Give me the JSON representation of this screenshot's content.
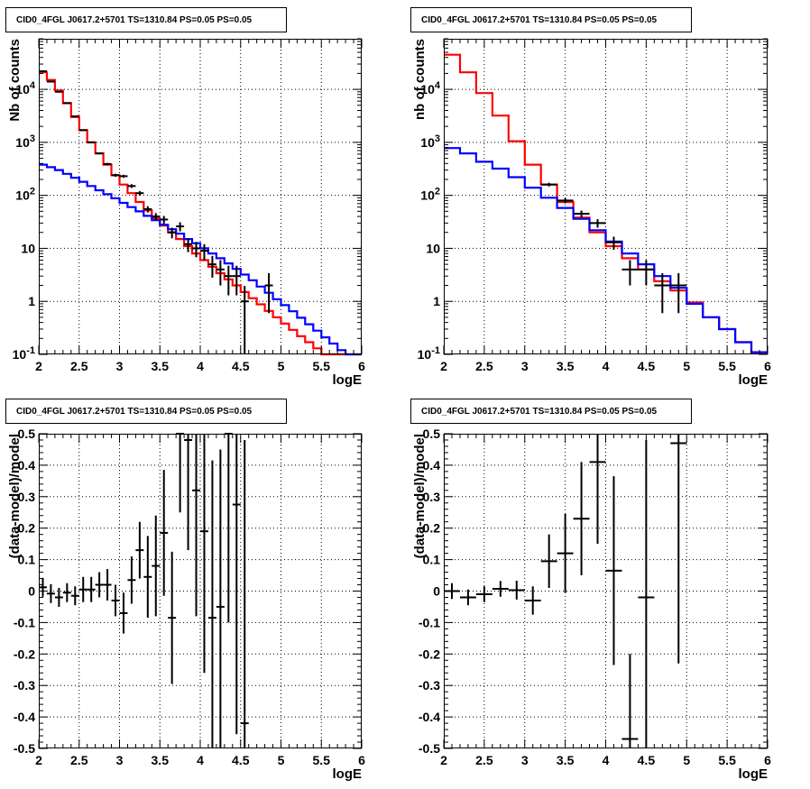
{
  "chart_data": [
    {
      "type": "line",
      "panel": "top-left",
      "title": "CID0_4FGL J0617.2+5701 TS=1310.84 PS=0.05 PS=0.05",
      "xlabel": "logE",
      "ylabel": "Nb of counts",
      "xlim": [
        2,
        6
      ],
      "ylim": [
        0.1,
        90000
      ],
      "yscale": "log",
      "grid": true,
      "x_ticks": [
        "2",
        "2.5",
        "3",
        "3.5",
        "4",
        "4.5",
        "5",
        "5.5",
        "6"
      ],
      "y_ticks": [
        "10^-1",
        "1",
        "10",
        "10^2",
        "10^3",
        "10^4"
      ],
      "series": [
        {
          "color": "#ff0000",
          "kind": "histogram",
          "bin_edges": [
            2.0,
            2.1,
            2.2,
            2.3,
            2.4,
            2.5,
            2.6,
            2.7,
            2.8,
            2.9,
            3.0,
            3.1,
            3.2,
            3.3,
            3.4,
            3.5,
            3.6,
            3.7,
            3.8,
            3.9,
            4.0,
            4.1,
            4.2,
            4.3,
            4.4,
            4.5,
            4.6,
            4.7,
            4.8,
            4.9,
            5.0,
            5.1,
            5.2,
            5.3,
            5.4,
            5.5,
            5.6,
            5.7,
            5.8,
            5.9,
            6.0
          ],
          "values": [
            21000,
            15000,
            9500,
            5500,
            3000,
            1700,
            1000,
            620,
            380,
            240,
            160,
            110,
            75,
            52,
            37,
            27,
            20,
            15,
            11,
            8,
            6,
            4.5,
            3.4,
            2.6,
            2,
            1.5,
            1.15,
            0.88,
            0.66,
            0.5,
            0.38,
            0.29,
            0.22,
            0.17,
            0.13,
            0.1,
            0.1,
            0.1,
            0.1,
            0.1
          ]
        },
        {
          "color": "#0000ff",
          "kind": "histogram",
          "bin_edges": [
            2.0,
            2.1,
            2.2,
            2.3,
            2.4,
            2.5,
            2.6,
            2.7,
            2.8,
            2.9,
            3.0,
            3.1,
            3.2,
            3.3,
            3.4,
            3.5,
            3.6,
            3.7,
            3.8,
            3.9,
            4.0,
            4.1,
            4.2,
            4.3,
            4.4,
            4.5,
            4.6,
            4.7,
            4.8,
            4.9,
            5.0,
            5.1,
            5.2,
            5.3,
            5.4,
            5.5,
            5.6,
            5.7,
            5.8,
            5.9,
            6.0
          ],
          "values": [
            380,
            340,
            300,
            255,
            215,
            180,
            150,
            125,
            105,
            88,
            72,
            60,
            50,
            41,
            34,
            28,
            23,
            19,
            15,
            12.5,
            10,
            8,
            6.5,
            5.2,
            4.1,
            3.2,
            2.5,
            1.9,
            1.45,
            1.1,
            0.85,
            0.65,
            0.49,
            0.37,
            0.28,
            0.21,
            0.16,
            0.12,
            0.1,
            0.1
          ]
        },
        {
          "color": "#000000",
          "kind": "points",
          "x": [
            2.05,
            2.15,
            2.25,
            2.35,
            2.45,
            2.55,
            2.65,
            2.75,
            2.85,
            2.95,
            3.05,
            3.15,
            3.25,
            3.35,
            3.45,
            3.55,
            3.65,
            3.75,
            3.85,
            3.95,
            4.05,
            4.15,
            4.25,
            4.35,
            4.45,
            4.55,
            4.85
          ],
          "y": [
            22000,
            14000,
            9000,
            5500,
            3100,
            1700,
            1000,
            620,
            390,
            240,
            230,
            150,
            110,
            55,
            40,
            35,
            20,
            26,
            12,
            10,
            9,
            5,
            4,
            3,
            3,
            1,
            2
          ],
          "xerr": 0.05,
          "yerr": [
            148,
            118,
            95,
            74,
            56,
            41,
            32,
            25,
            20,
            15.5,
            15,
            12,
            10.5,
            7.4,
            6.3,
            5.9,
            4.5,
            5.1,
            3.5,
            3.2,
            3,
            2.2,
            2,
            1.7,
            1.7,
            0.95,
            1.4
          ]
        }
      ]
    },
    {
      "type": "line",
      "panel": "top-right",
      "title": "CID0_4FGL J0617.2+5701 TS=1310.84 PS=0.05 PS=0.05",
      "xlabel": "logE",
      "ylabel": "nb of counts",
      "xlim": [
        2,
        6
      ],
      "ylim": [
        0.1,
        90000
      ],
      "yscale": "log",
      "grid": true,
      "x_ticks": [
        "2",
        "2.5",
        "3",
        "3.5",
        "4",
        "4.5",
        "5",
        "5.5",
        "6"
      ],
      "y_ticks": [
        "10^-1",
        "1",
        "10",
        "10^2",
        "10^3",
        "10^4"
      ],
      "series": [
        {
          "color": "#ff0000",
          "kind": "histogram",
          "bin_edges": [
            2.0,
            2.2,
            2.4,
            2.6,
            2.8,
            3.0,
            3.2,
            3.4,
            3.6,
            3.8,
            4.0,
            4.2,
            4.4,
            4.6,
            4.8,
            5.0,
            5.2,
            5.4,
            5.6,
            5.8,
            6.0
          ],
          "values": [
            45000,
            21000,
            8500,
            3200,
            1050,
            380,
            160,
            75,
            38,
            20,
            11,
            6.5,
            4,
            2.4,
            1.6,
            0.95,
            0.5,
            0.3,
            0.17,
            0.11
          ]
        },
        {
          "color": "#0000ff",
          "kind": "histogram",
          "bin_edges": [
            2.0,
            2.2,
            2.4,
            2.6,
            2.8,
            3.0,
            3.2,
            3.4,
            3.6,
            3.8,
            4.0,
            4.2,
            4.4,
            4.6,
            4.8,
            5.0,
            5.2,
            5.4,
            5.6,
            5.8,
            6.0
          ],
          "values": [
            780,
            620,
            430,
            320,
            220,
            140,
            90,
            58,
            36,
            22,
            13.5,
            8,
            5,
            3,
            1.8,
            0.9,
            0.5,
            0.3,
            0.17,
            0.11
          ]
        },
        {
          "color": "#000000",
          "kind": "points",
          "x": [
            3.3,
            3.5,
            3.7,
            3.9,
            4.1,
            4.3,
            4.5,
            4.7,
            4.9
          ],
          "y": [
            160,
            80,
            45,
            30,
            13,
            4,
            4,
            2,
            2
          ],
          "xerr": 0.1,
          "yerr": [
            12.6,
            9,
            6.7,
            5.5,
            3.6,
            2,
            2,
            1.4,
            1.4
          ]
        }
      ]
    },
    {
      "type": "scatter",
      "panel": "bottom-left",
      "title": "CID0_4FGL J0617.2+5701 TS=1310.84 PS=0.05 PS=0.05",
      "xlabel": "logE",
      "ylabel": "(data-model)/model",
      "xlim": [
        2,
        6
      ],
      "ylim": [
        -0.5,
        0.5
      ],
      "grid": true,
      "x_ticks": [
        "2",
        "2.5",
        "3",
        "3.5",
        "4",
        "4.5",
        "5",
        "5.5",
        "6"
      ],
      "y_ticks": [
        "-0.5",
        "-0.4",
        "-0.3",
        "-0.2",
        "-0.1",
        "0",
        "0.1",
        "0.2",
        "0.3",
        "0.4",
        "0.5"
      ],
      "series": [
        {
          "color": "#000000",
          "x": [
            2.05,
            2.15,
            2.25,
            2.35,
            2.45,
            2.55,
            2.65,
            2.75,
            2.85,
            2.95,
            3.05,
            3.15,
            3.25,
            3.35,
            3.45,
            3.55,
            3.65,
            3.75,
            3.85,
            3.95,
            4.05,
            4.15,
            4.25,
            4.35,
            4.45,
            4.55
          ],
          "y": [
            0.012,
            -0.008,
            -0.02,
            -0.005,
            -0.015,
            0.005,
            0.005,
            0.02,
            0.02,
            -0.03,
            -0.07,
            0.035,
            0.13,
            0.045,
            0.08,
            0.185,
            -0.085,
            0.5,
            0.48,
            0.32,
            0.19,
            -0.085,
            -0.05,
            0.5,
            0.275,
            -0.42
          ],
          "xerr": 0.05,
          "yerr": [
            0.03,
            0.03,
            0.03,
            0.03,
            0.03,
            0.04,
            0.04,
            0.04,
            0.05,
            0.05,
            0.065,
            0.075,
            0.09,
            0.13,
            0.16,
            0.2,
            0.21,
            0.25,
            0.35,
            0.4,
            0.45,
            0.5,
            0.5,
            0.6,
            0.73,
            0.9
          ]
        }
      ]
    },
    {
      "type": "scatter",
      "panel": "bottom-right",
      "title": "CID0_4FGL J0617.2+5701 TS=1310.84 PS=0.05 PS=0.05",
      "xlabel": "logE",
      "ylabel": "(data-model)/model",
      "xlim": [
        2,
        6
      ],
      "ylim": [
        -0.5,
        0.5
      ],
      "grid": true,
      "x_ticks": [
        "2",
        "2.5",
        "3",
        "3.5",
        "4",
        "4.5",
        "5",
        "5.5",
        "6"
      ],
      "y_ticks": [
        "-0.5",
        "-0.4",
        "-0.3",
        "-0.2",
        "-0.1",
        "0",
        "0.1",
        "0.2",
        "0.3",
        "0.4",
        "0.5"
      ],
      "series": [
        {
          "color": "#000000",
          "x": [
            2.1,
            2.3,
            2.5,
            2.7,
            2.9,
            3.1,
            3.3,
            3.5,
            3.7,
            3.9,
            4.1,
            4.3,
            4.5,
            4.9
          ],
          "y": [
            0.0,
            -0.02,
            -0.01,
            0.007,
            0.003,
            -0.03,
            0.095,
            0.12,
            0.23,
            0.41,
            0.065,
            -0.47,
            -0.02,
            0.47
          ],
          "xerr": 0.1,
          "yerr": [
            0.025,
            0.025,
            0.025,
            0.025,
            0.03,
            0.045,
            0.085,
            0.125,
            0.18,
            0.26,
            0.3,
            0.27,
            0.5,
            0.7
          ]
        }
      ]
    }
  ]
}
